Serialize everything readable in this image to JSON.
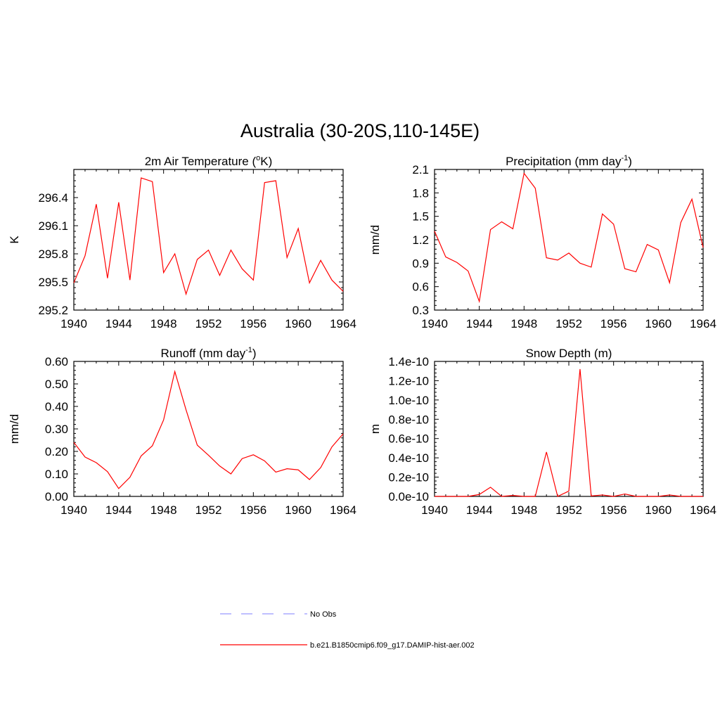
{
  "title": "Australia (30-20S,110-145E)",
  "colors": {
    "series": "#ff0000",
    "obs": "#9999ff",
    "axis": "#000000"
  },
  "legend": [
    {
      "label": "No Obs",
      "style": "dashed",
      "color": "#9999ff"
    },
    {
      "label": "b.e21.B1850cmip6.f09_g17.DAMIP-hist-aer.002",
      "style": "solid",
      "color": "#ff0000"
    }
  ],
  "chart_data": [
    {
      "type": "line",
      "title_main": "2m Air Temperature (",
      "title_sup": "o",
      "title_tail": "K)",
      "ylabel": "K",
      "xlim": [
        1940,
        1964
      ],
      "ylim": [
        295.2,
        296.7
      ],
      "xticks": [
        1940,
        1944,
        1948,
        1952,
        1956,
        1960,
        1964
      ],
      "yticks": [
        295.2,
        295.5,
        295.8,
        296.1,
        296.4
      ],
      "ytick_labels": [
        "295.2",
        "295.5",
        "295.8",
        "296.1",
        "296.4"
      ],
      "x": [
        1940,
        1941,
        1942,
        1943,
        1944,
        1945,
        1946,
        1947,
        1948,
        1949,
        1950,
        1951,
        1952,
        1953,
        1954,
        1955,
        1956,
        1957,
        1958,
        1959,
        1960,
        1961,
        1962,
        1963,
        1964
      ],
      "series": [
        {
          "values": [
            295.49,
            295.78,
            296.33,
            295.54,
            296.35,
            295.52,
            296.61,
            296.57,
            295.6,
            295.8,
            295.37,
            295.74,
            295.84,
            295.57,
            295.84,
            295.64,
            295.52,
            296.56,
            296.58,
            295.76,
            296.07,
            295.49,
            295.73,
            295.52,
            295.4
          ]
        }
      ]
    },
    {
      "type": "line",
      "title_main": "Precipitation (mm day",
      "title_sup": "-1",
      "title_tail": ")",
      "ylabel": "mm/d",
      "xlim": [
        1940,
        1964
      ],
      "ylim": [
        0.3,
        2.1
      ],
      "xticks": [
        1940,
        1944,
        1948,
        1952,
        1956,
        1960,
        1964
      ],
      "yticks": [
        0.3,
        0.6,
        0.9,
        1.2,
        1.5,
        1.8,
        2.1
      ],
      "ytick_labels": [
        "0.3",
        "0.6",
        "0.9",
        "1.2",
        "1.5",
        "1.8",
        "2.1"
      ],
      "x": [
        1940,
        1941,
        1942,
        1943,
        1944,
        1945,
        1946,
        1947,
        1948,
        1949,
        1950,
        1951,
        1952,
        1953,
        1954,
        1955,
        1956,
        1957,
        1958,
        1959,
        1960,
        1961,
        1962,
        1963,
        1964
      ],
      "series": [
        {
          "values": [
            1.31,
            0.98,
            0.91,
            0.8,
            0.41,
            1.33,
            1.43,
            1.34,
            2.05,
            1.86,
            0.97,
            0.94,
            1.03,
            0.9,
            0.85,
            1.53,
            1.4,
            0.83,
            0.79,
            1.14,
            1.07,
            0.65,
            1.42,
            1.72,
            1.1
          ]
        }
      ]
    },
    {
      "type": "line",
      "title_main": "Runoff (mm day",
      "title_sup": "-1",
      "title_tail": ")",
      "ylabel": "mm/d",
      "xlim": [
        1940,
        1964
      ],
      "ylim": [
        0.0,
        0.6
      ],
      "xticks": [
        1940,
        1944,
        1948,
        1952,
        1956,
        1960,
        1964
      ],
      "yticks": [
        0.0,
        0.1,
        0.2,
        0.3,
        0.4,
        0.5,
        0.6
      ],
      "ytick_labels": [
        "0.00",
        "0.10",
        "0.20",
        "0.30",
        "0.40",
        "0.50",
        "0.60"
      ],
      "x": [
        1940,
        1941,
        1942,
        1943,
        1944,
        1945,
        1946,
        1947,
        1948,
        1949,
        1950,
        1951,
        1952,
        1953,
        1954,
        1955,
        1956,
        1957,
        1958,
        1959,
        1960,
        1961,
        1962,
        1963,
        1964
      ],
      "series": [
        {
          "values": [
            0.24,
            0.175,
            0.15,
            0.11,
            0.035,
            0.085,
            0.18,
            0.225,
            0.34,
            0.555,
            0.385,
            0.228,
            0.183,
            0.135,
            0.1,
            0.168,
            0.185,
            0.158,
            0.108,
            0.123,
            0.118,
            0.075,
            0.128,
            0.22,
            0.278
          ]
        }
      ]
    },
    {
      "type": "line",
      "title_main": "Snow Depth (m)",
      "title_sup": "",
      "title_tail": "",
      "ylabel": "m",
      "xlim": [
        1940,
        1964
      ],
      "ylim": [
        0,
        1.4e-10
      ],
      "xticks": [
        1940,
        1944,
        1948,
        1952,
        1956,
        1960,
        1964
      ],
      "yticks": [
        0,
        2e-11,
        4e-11,
        6e-11,
        8e-11,
        1e-10,
        1.2e-10,
        1.4e-10
      ],
      "ytick_labels": [
        "0.0e-10",
        "0.2e-10",
        "0.4e-10",
        "0.6e-10",
        "0.8e-10",
        "1.0e-10",
        "1.2e-10",
        "1.4e-10"
      ],
      "x": [
        1940,
        1941,
        1942,
        1943,
        1944,
        1945,
        1946,
        1947,
        1948,
        1949,
        1950,
        1951,
        1952,
        1953,
        1954,
        1955,
        1956,
        1957,
        1958,
        1959,
        1960,
        1961,
        1962,
        1963,
        1964
      ],
      "series": [
        {
          "values": [
            0,
            0,
            0,
            0,
            2e-12,
            9.5e-12,
            0,
            1e-12,
            0,
            0,
            4.6e-11,
            0,
            5.5e-12,
            1.32e-10,
            5e-13,
            1.5e-12,
            0,
            2.5e-12,
            0,
            0,
            0,
            1.5e-12,
            0,
            0,
            0
          ]
        }
      ]
    }
  ]
}
